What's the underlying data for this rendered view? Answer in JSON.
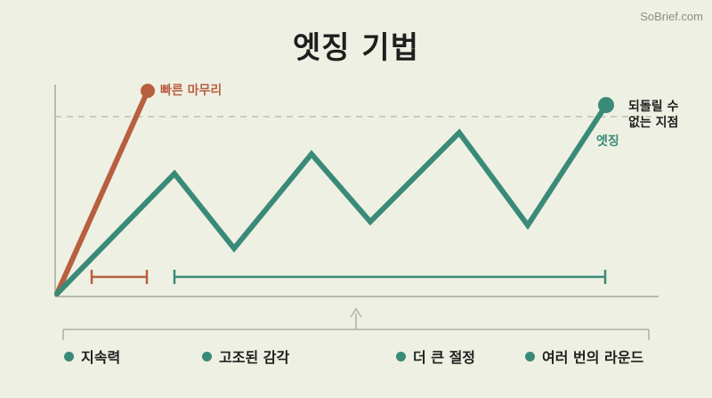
{
  "watermark": "SoBrief.com",
  "title": "엣징 기법",
  "labels": {
    "quick_finish": "빠른 마무리",
    "edging": "엣징",
    "point_of_no_return_line1": "되돌릴 수",
    "point_of_no_return_line2": "없는 지점"
  },
  "legend": [
    {
      "label": "지속력"
    },
    {
      "label": "고조된 감각"
    },
    {
      "label": "더 큰 절정"
    },
    {
      "label": "여러 번의 라운드"
    }
  ],
  "colors": {
    "background": "#eef0e3",
    "quick_line": "#b85f40",
    "edging_line": "#3a8a78",
    "axis": "#b7bab0",
    "threshold": "#b7bab0",
    "text": "#1e1e1e"
  }
}
